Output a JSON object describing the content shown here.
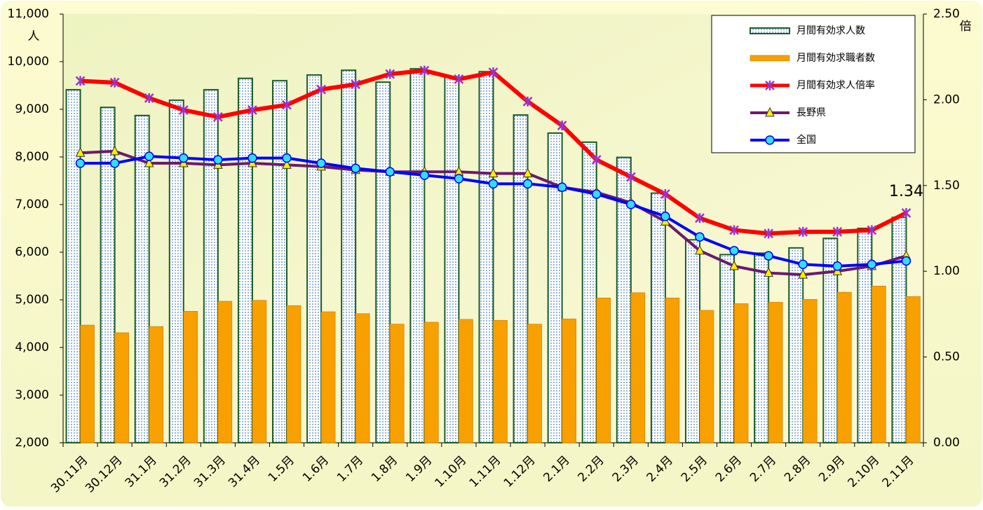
{
  "chart_data": {
    "type": "bar",
    "ylabel": "人",
    "y2label": "倍",
    "categories": [
      "30.11月",
      "30.12月",
      "31.1月",
      "31.2月",
      "31.3月",
      "31.4月",
      "1.5月",
      "1.6月",
      "1.7月",
      "1.8月",
      "1.9月",
      "1.10月",
      "1.11月",
      "1.12月",
      "2.1月",
      "2.2月",
      "2.3月",
      "2.4月",
      "2.5月",
      "2.6月",
      "2.7月",
      "2.8月",
      "2.9月",
      "2.10月",
      "2.11月"
    ],
    "series": [
      {
        "name": "月間有効求人数",
        "type": "bar",
        "color": "#1a5c2a",
        "values": [
          9410,
          9040,
          8870,
          9190,
          9410,
          9650,
          9600,
          9720,
          9820,
          9570,
          9850,
          9680,
          9790,
          8880,
          8500,
          8310,
          7990,
          7240,
          6260,
          5950,
          5980,
          6090,
          6290,
          6500,
          6730
        ]
      },
      {
        "name": "月間有効求職者数",
        "type": "bar",
        "color": "#f7a000",
        "values": [
          4470,
          4310,
          4440,
          4760,
          4970,
          4990,
          4880,
          4750,
          4710,
          4490,
          4530,
          4590,
          4570,
          4490,
          4600,
          5040,
          5150,
          5040,
          4780,
          4920,
          4950,
          5010,
          5160,
          5290,
          5070
        ]
      },
      {
        "name": "月間有効求人倍率",
        "type": "line",
        "axis": "y2",
        "color": "#ff0000",
        "marker": "x",
        "marker_color": "#9933cc",
        "values": [
          2.11,
          2.1,
          2.01,
          1.94,
          1.9,
          1.94,
          1.97,
          2.06,
          2.09,
          2.15,
          2.17,
          2.12,
          2.16,
          1.99,
          1.85,
          1.65,
          1.55,
          1.45,
          1.31,
          1.24,
          1.22,
          1.23,
          1.23,
          1.24,
          1.34
        ]
      },
      {
        "name": "長野県",
        "type": "line",
        "axis": "y2",
        "color": "#6a1b6a",
        "marker": "triangle",
        "marker_color": "#ffee00",
        "values": [
          1.69,
          1.7,
          1.63,
          1.63,
          1.62,
          1.63,
          1.62,
          1.61,
          1.59,
          1.58,
          1.58,
          1.58,
          1.57,
          1.57,
          1.49,
          1.46,
          1.4,
          1.29,
          1.12,
          1.03,
          0.99,
          0.98,
          1.0,
          1.03,
          1.09
        ]
      },
      {
        "name": "全国",
        "type": "line",
        "axis": "y2",
        "color": "#0000ff",
        "marker": "circle",
        "marker_color": "#33ddff",
        "values": [
          1.63,
          1.63,
          1.67,
          1.66,
          1.65,
          1.66,
          1.66,
          1.63,
          1.6,
          1.58,
          1.56,
          1.54,
          1.51,
          1.51,
          1.49,
          1.45,
          1.39,
          1.32,
          1.2,
          1.12,
          1.09,
          1.04,
          1.03,
          1.04,
          1.06
        ]
      }
    ],
    "label_point": [
      2,
      24
    ],
    "ylim": [
      2000,
      11000
    ],
    "yticks": [
      {
        "value": 2000,
        "label": "2,000"
      },
      {
        "value": 3000,
        "label": "3,000"
      },
      {
        "value": 4000,
        "label": "4,000"
      },
      {
        "value": 5000,
        "label": "5,000"
      },
      {
        "value": 6000,
        "label": "6,000"
      },
      {
        "value": 7000,
        "label": "7,000"
      },
      {
        "value": 8000,
        "label": "8,000"
      },
      {
        "value": 9000,
        "label": "9,000"
      },
      {
        "value": 10000,
        "label": "10,000"
      },
      {
        "value": 11000,
        "label": "11,000"
      }
    ],
    "y2lim": [
      0,
      2.5
    ],
    "y2ticks": [
      {
        "value": 0,
        "label": "0.00"
      },
      {
        "value": 0.5,
        "label": "0.50"
      },
      {
        "value": 1,
        "label": "1.00"
      },
      {
        "value": 1.5,
        "label": "1.50"
      },
      {
        "value": 2,
        "label": "2.00"
      },
      {
        "value": 2.5,
        "label": "2.50"
      }
    ],
    "legend": "upper right"
  }
}
